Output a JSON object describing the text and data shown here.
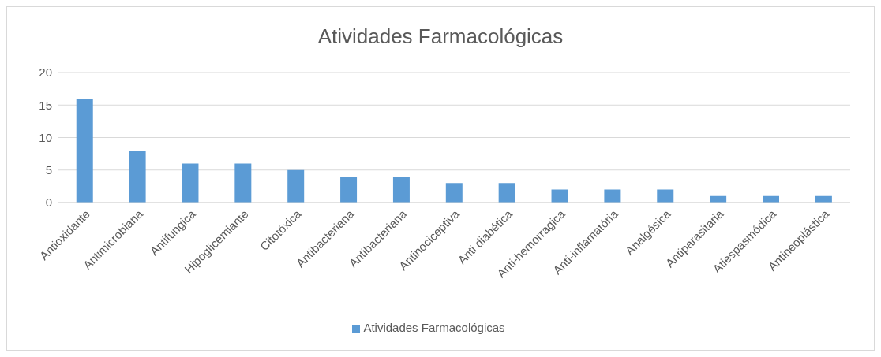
{
  "chart_data": {
    "type": "bar",
    "title": "Atividades Farmacológicas",
    "categories": [
      "Antioxidante",
      "Antimicrobiana",
      "Antifungica",
      "Hipoglicemiante",
      "Citotóxica",
      "Antibacteriana",
      "Antibacteriana",
      "Antinociceptiva",
      "Anti diabética",
      "Anti-hemorragica",
      "Anti-inflamatória",
      "Analgésica",
      "Antiparasitaria",
      "Atiespasmódica",
      "Antineoplástica"
    ],
    "series": [
      {
        "name": "Atividades Farmacológicas",
        "color": "#5b9bd5",
        "values": [
          16,
          8,
          6,
          6,
          5,
          4,
          4,
          3,
          3,
          2,
          2,
          2,
          1,
          1,
          1
        ]
      }
    ],
    "ylim": [
      0,
      20
    ],
    "yticks": [
      0,
      5,
      10,
      15,
      20
    ],
    "grid": "y",
    "legend": "bottom"
  }
}
